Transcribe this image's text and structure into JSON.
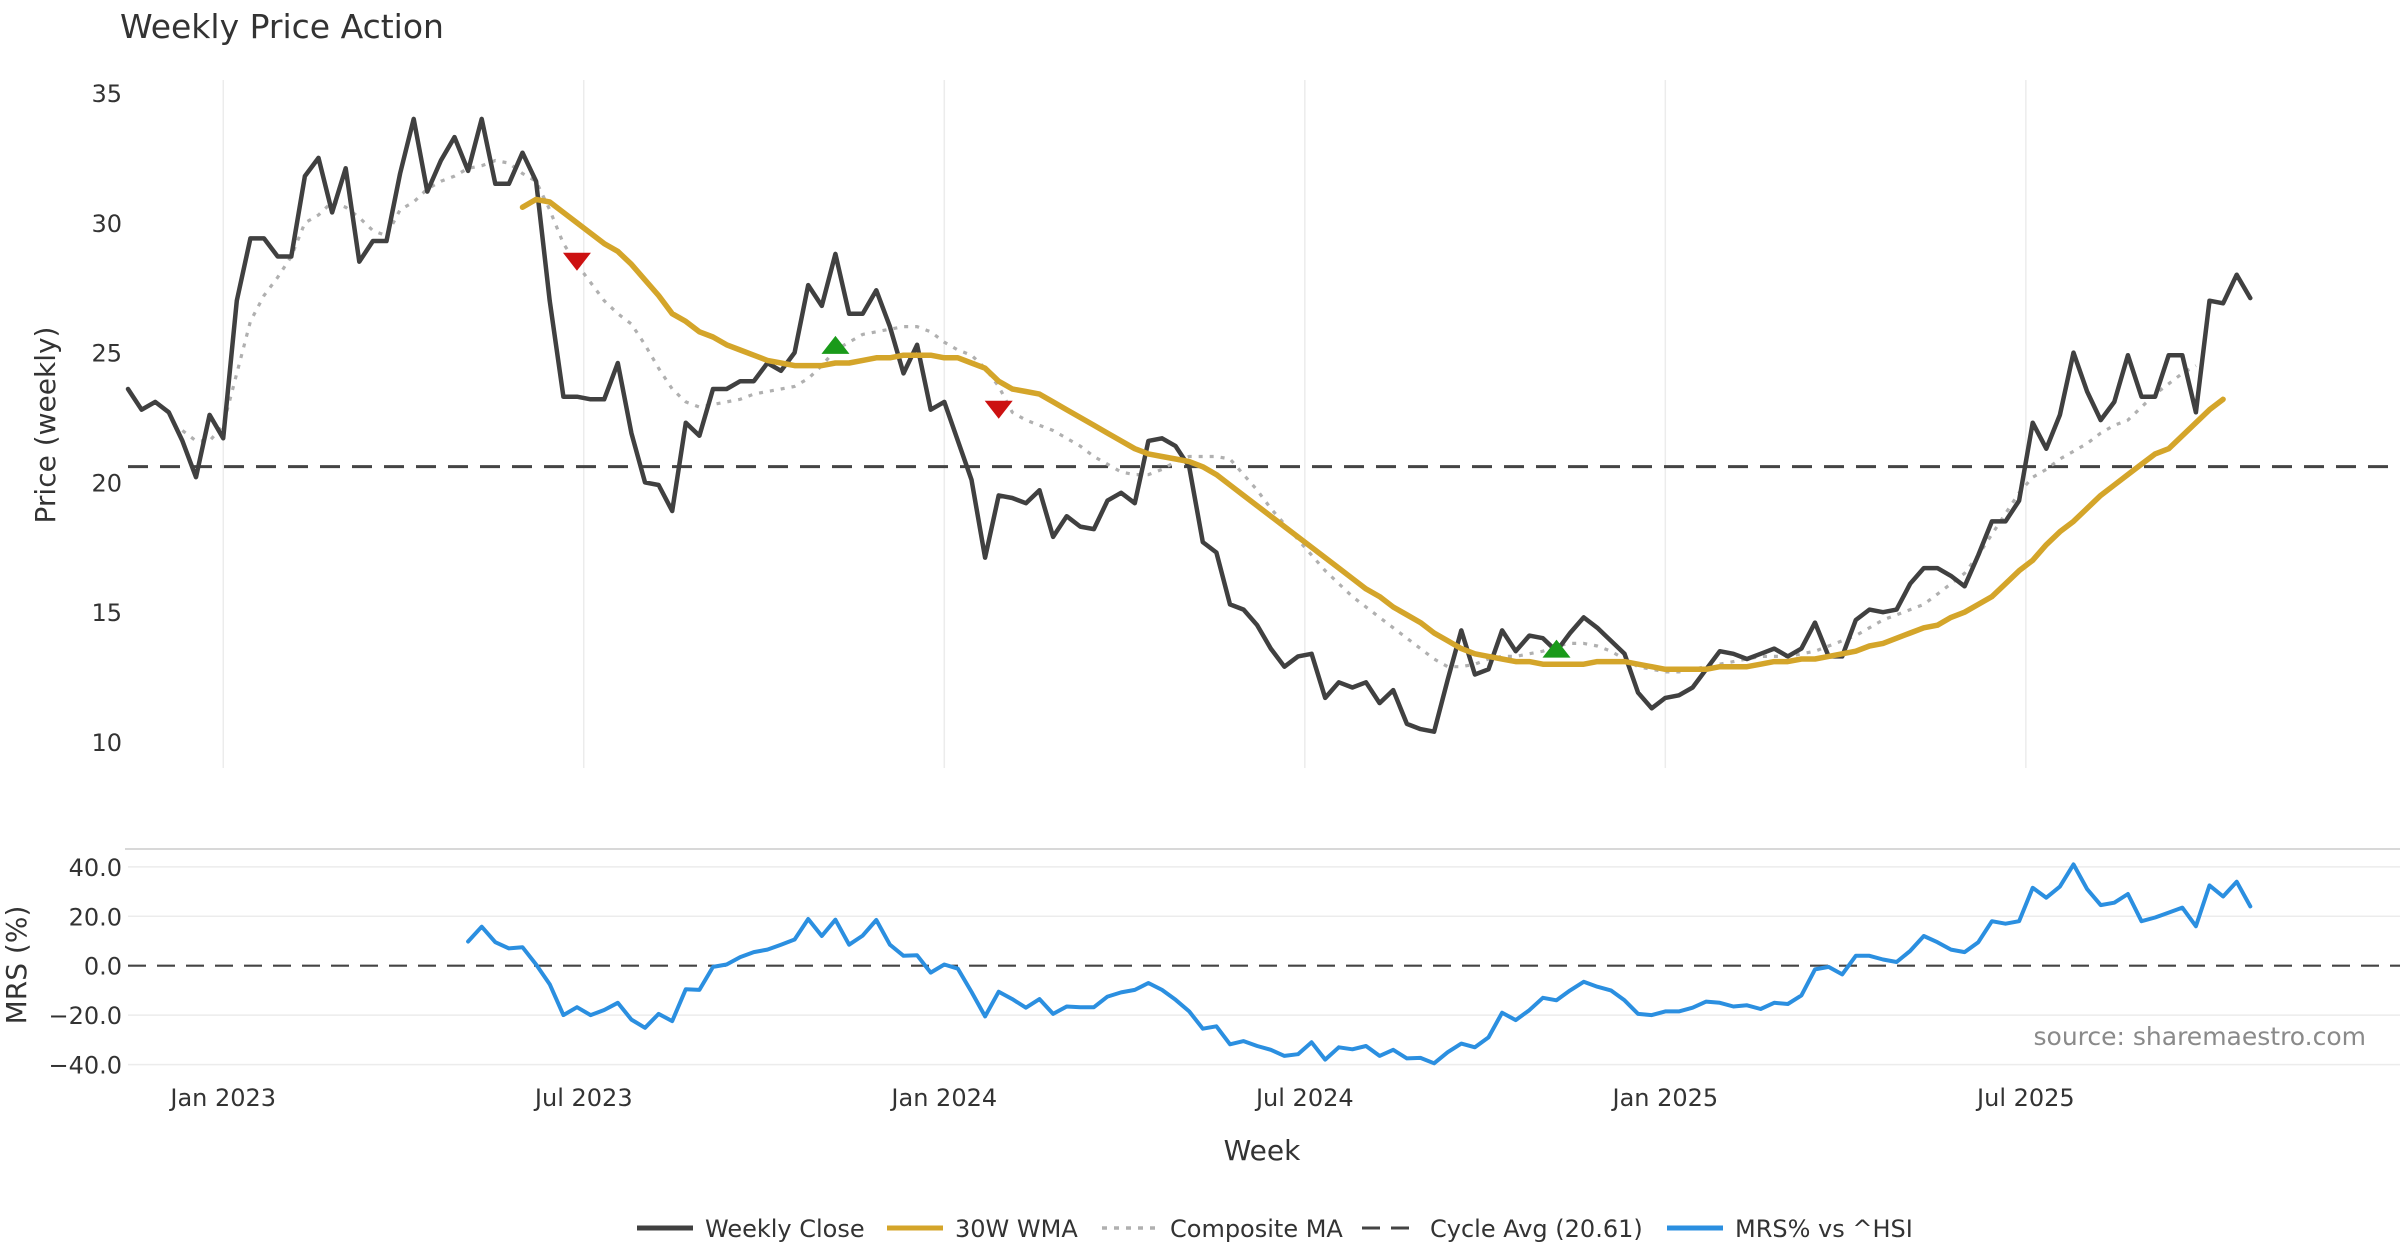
{
  "chart_data": {
    "type": "line",
    "title": "Weekly Price Action",
    "source_note": "source: sharemaestro.com",
    "x_label": "Week",
    "x_ticks": [
      "Jan 2023",
      "Jul 2023",
      "Jan 2024",
      "Jul 2024",
      "Jan 2025",
      "Jul 2025"
    ],
    "x_range_weeks": [
      0,
      167
    ],
    "x_tick_weeks": [
      7,
      33.5,
      60,
      86.5,
      113,
      139.5
    ],
    "cycle_avg": 20.61,
    "price_panel": {
      "ylabel": "Price (weekly)",
      "ylim": [
        9,
        35.5
      ],
      "yticks": [
        10,
        15,
        20,
        25,
        30,
        35
      ]
    },
    "mrs_panel": {
      "ylabel": "MRS (%)",
      "ylim": [
        -43,
        46
      ],
      "yticks": [
        -40,
        -20,
        0,
        20,
        40
      ],
      "ytick_labels": [
        "−40.0",
        "−20.0",
        "0.0",
        "20.0",
        "40.0"
      ]
    },
    "series": [
      {
        "name": "Weekly Close",
        "panel": "price",
        "color": "#404040",
        "start_week": 0,
        "values": [
          23.6,
          22.8,
          23.1,
          22.7,
          21.6,
          20.2,
          22.6,
          21.7,
          27.0,
          29.4,
          29.4,
          28.7,
          28.7,
          31.8,
          32.5,
          30.4,
          32.1,
          28.5,
          29.3,
          29.3,
          31.9,
          34.0,
          31.2,
          32.4,
          33.3,
          32.0,
          34.0,
          31.5,
          31.5,
          32.7,
          31.6,
          27.0,
          23.3,
          23.3,
          23.2,
          23.2,
          24.6,
          21.9,
          20.0,
          19.9,
          18.9,
          22.3,
          21.8,
          23.6,
          23.6,
          23.9,
          23.9,
          24.6,
          24.3,
          25.0,
          27.6,
          26.8,
          28.8,
          26.5,
          26.5,
          27.4,
          26.0,
          24.2,
          25.3,
          22.8,
          23.1,
          21.6,
          20.1,
          17.1,
          19.5,
          19.4,
          19.2,
          19.7,
          17.9,
          18.7,
          18.3,
          18.2,
          19.3,
          19.6,
          19.2,
          21.6,
          21.7,
          21.4,
          20.6,
          17.7,
          17.3,
          15.3,
          15.1,
          14.5,
          13.6,
          12.9,
          13.3,
          13.4,
          11.7,
          12.3,
          12.1,
          12.3,
          11.5,
          12.0,
          10.7,
          10.5,
          10.4,
          12.4,
          14.3,
          12.6,
          12.8,
          14.3,
          13.5,
          14.1,
          14.0,
          13.5,
          14.2,
          14.8,
          14.4,
          13.9,
          13.4,
          11.9,
          11.3,
          11.7,
          11.8,
          12.1,
          12.8,
          13.5,
          13.4,
          13.2,
          13.4,
          13.6,
          13.3,
          13.6,
          14.6,
          13.3,
          13.3,
          14.7,
          15.1,
          15.0,
          15.1,
          16.1,
          16.7,
          16.7,
          16.4,
          16.0,
          17.2,
          18.5,
          18.5,
          19.3,
          22.3,
          21.3,
          22.6,
          25.0,
          23.5,
          22.4,
          23.1,
          24.9,
          23.3,
          23.3,
          24.9,
          24.9,
          22.7,
          27.0,
          26.9,
          28.0,
          27.1
        ]
      },
      {
        "name": "30W WMA",
        "panel": "price",
        "color": "#d4a52a",
        "start_week": 29,
        "values": [
          30.6,
          30.9,
          30.8,
          30.4,
          30.0,
          29.6,
          29.2,
          28.9,
          28.4,
          27.8,
          27.2,
          26.5,
          26.2,
          25.8,
          25.6,
          25.3,
          25.1,
          24.9,
          24.7,
          24.6,
          24.5,
          24.5,
          24.5,
          24.6,
          24.6,
          24.7,
          24.8,
          24.8,
          24.9,
          24.9,
          24.9,
          24.8,
          24.8,
          24.6,
          24.4,
          23.9,
          23.6,
          23.5,
          23.4,
          23.1,
          22.8,
          22.5,
          22.2,
          21.9,
          21.6,
          21.3,
          21.1,
          21.0,
          20.9,
          20.8,
          20.6,
          20.3,
          19.9,
          19.5,
          19.1,
          18.7,
          18.3,
          17.9,
          17.5,
          17.1,
          16.7,
          16.3,
          15.9,
          15.6,
          15.2,
          14.9,
          14.6,
          14.2,
          13.9,
          13.6,
          13.4,
          13.3,
          13.2,
          13.1,
          13.1,
          13.0,
          13.0,
          13.0,
          13.0,
          13.1,
          13.1,
          13.1,
          13.0,
          12.9,
          12.8,
          12.8,
          12.8,
          12.8,
          12.9,
          12.9,
          12.9,
          13.0,
          13.1,
          13.1,
          13.2,
          13.2,
          13.3,
          13.4,
          13.5,
          13.7,
          13.8,
          14.0,
          14.2,
          14.4,
          14.5,
          14.8,
          15.0,
          15.3,
          15.6,
          16.1,
          16.6,
          17.0,
          17.6,
          18.1,
          18.5,
          19.0,
          19.5,
          19.9,
          20.3,
          20.7,
          21.1,
          21.3,
          21.8,
          22.3,
          22.8,
          23.2
        ]
      },
      {
        "name": "Composite MA",
        "panel": "price",
        "color": "#b0b0b0",
        "start_week": 4,
        "values": [
          22.0,
          21.6,
          21.6,
          22.2,
          24.2,
          26.2,
          27.2,
          27.9,
          28.7,
          30.0,
          30.3,
          30.8,
          30.6,
          30.2,
          29.7,
          29.5,
          30.5,
          30.8,
          31.3,
          31.6,
          31.8,
          32.1,
          32.2,
          32.4,
          32.3,
          31.9,
          31.6,
          30.5,
          29.2,
          28.4,
          27.7,
          27.0,
          26.5,
          26.1,
          25.3,
          24.4,
          23.6,
          23.1,
          22.9,
          23.0,
          23.1,
          23.2,
          23.4,
          23.5,
          23.6,
          23.7,
          24.0,
          24.5,
          25.1,
          25.4,
          25.7,
          25.8,
          25.9,
          26.0,
          26.0,
          25.8,
          25.4,
          25.1,
          24.9,
          24.4,
          23.7,
          22.7,
          22.4,
          22.2,
          22.0,
          21.7,
          21.4,
          21.0,
          20.7,
          20.4,
          20.3,
          20.3,
          20.5,
          20.8,
          21.0,
          21.0,
          21.0,
          20.9,
          20.3,
          19.7,
          19.0,
          18.4,
          17.8,
          17.2,
          16.6,
          16.1,
          15.6,
          15.2,
          14.8,
          14.4,
          14.0,
          13.6,
          13.2,
          12.9,
          12.9,
          13.0,
          13.2,
          13.3,
          13.3,
          13.4,
          13.5,
          13.7,
          13.8,
          13.8,
          13.7,
          13.5,
          13.2,
          12.9,
          12.8,
          12.7,
          12.7,
          12.8,
          12.9,
          13.0,
          13.1,
          13.2,
          13.3,
          13.3,
          13.3,
          13.4,
          13.5,
          13.7,
          13.9,
          14.1,
          14.4,
          14.7,
          14.9,
          15.1,
          15.3,
          15.7,
          16.1,
          16.5,
          17.2,
          18.0,
          18.8,
          19.6,
          20.2,
          20.5,
          20.9,
          21.2,
          21.5,
          21.9,
          22.2,
          22.4,
          22.9,
          23.4,
          23.8,
          24.2,
          24.5
        ]
      },
      {
        "name": "MRS% vs ^HSI",
        "panel": "mrs",
        "color": "#2b8fe0",
        "start_week": 25,
        "values": [
          9.8,
          15.8,
          9.5,
          7.0,
          7.5,
          0.5,
          -7.5,
          -20.0,
          -16.8,
          -20.0,
          -17.9,
          -15.0,
          -21.8,
          -25.1,
          -19.5,
          -22.4,
          -9.5,
          -9.8,
          -0.5,
          0.5,
          3.5,
          5.5,
          6.5,
          8.5,
          10.6,
          18.9,
          12.0,
          18.6,
          8.5,
          12.2,
          18.5,
          8.5,
          4.0,
          4.2,
          -2.8,
          0.5,
          -1.2,
          -10.6,
          -20.5,
          -10.5,
          -13.5,
          -17.0,
          -13.5,
          -19.5,
          -16.5,
          -16.8,
          -16.8,
          -12.5,
          -10.8,
          -9.8,
          -7.0,
          -9.8,
          -13.8,
          -18.5,
          -25.5,
          -24.5,
          -31.8,
          -30.5,
          -32.5,
          -34.0,
          -36.5,
          -35.8,
          -31.0,
          -38.0,
          -33.0,
          -33.8,
          -32.5,
          -36.5,
          -34.0,
          -37.5,
          -37.3,
          -39.5,
          -35.0,
          -31.5,
          -33.0,
          -29.0,
          -19.0,
          -22.0,
          -18.0,
          -13.0,
          -14.0,
          -10.0,
          -6.5,
          -8.5,
          -10.0,
          -14.0,
          -19.5,
          -20.0,
          -18.5,
          -18.5,
          -17.0,
          -14.5,
          -15.0,
          -16.5,
          -16.0,
          -17.5,
          -15.0,
          -15.5,
          -12.0,
          -1.5,
          -0.5,
          -3.5,
          4.0,
          4.0,
          2.5,
          1.5,
          6.0,
          12.0,
          9.5,
          6.5,
          5.5,
          9.5,
          18.0,
          17.0,
          18.0,
          31.5,
          27.5,
          32.0,
          41.0,
          31.0,
          24.5,
          25.5,
          29.0,
          18.0,
          19.5,
          21.5,
          23.5,
          16.0,
          32.5,
          28.0,
          34.0,
          24.0
        ]
      }
    ],
    "signals": [
      {
        "type": "sell",
        "week": 33,
        "price": 28.5,
        "color": "#cc1111"
      },
      {
        "type": "buy",
        "week": 52,
        "price": 25.3,
        "color": "#1a9a1a"
      },
      {
        "type": "sell",
        "week": 64,
        "price": 22.8,
        "color": "#cc1111"
      },
      {
        "type": "buy",
        "week": 105,
        "price": 13.6,
        "color": "#1a9a1a"
      }
    ],
    "legend": [
      {
        "label": "Weekly Close",
        "color": "#404040",
        "style": "solid"
      },
      {
        "label": "30W WMA",
        "color": "#d4a52a",
        "style": "solid"
      },
      {
        "label": "Composite MA",
        "color": "#b0b0b0",
        "style": "dotted"
      },
      {
        "label": "Cycle Avg (20.61)",
        "color": "#444444",
        "style": "dashed"
      },
      {
        "label": "MRS% vs ^HSI",
        "color": "#2b8fe0",
        "style": "solid"
      }
    ]
  }
}
